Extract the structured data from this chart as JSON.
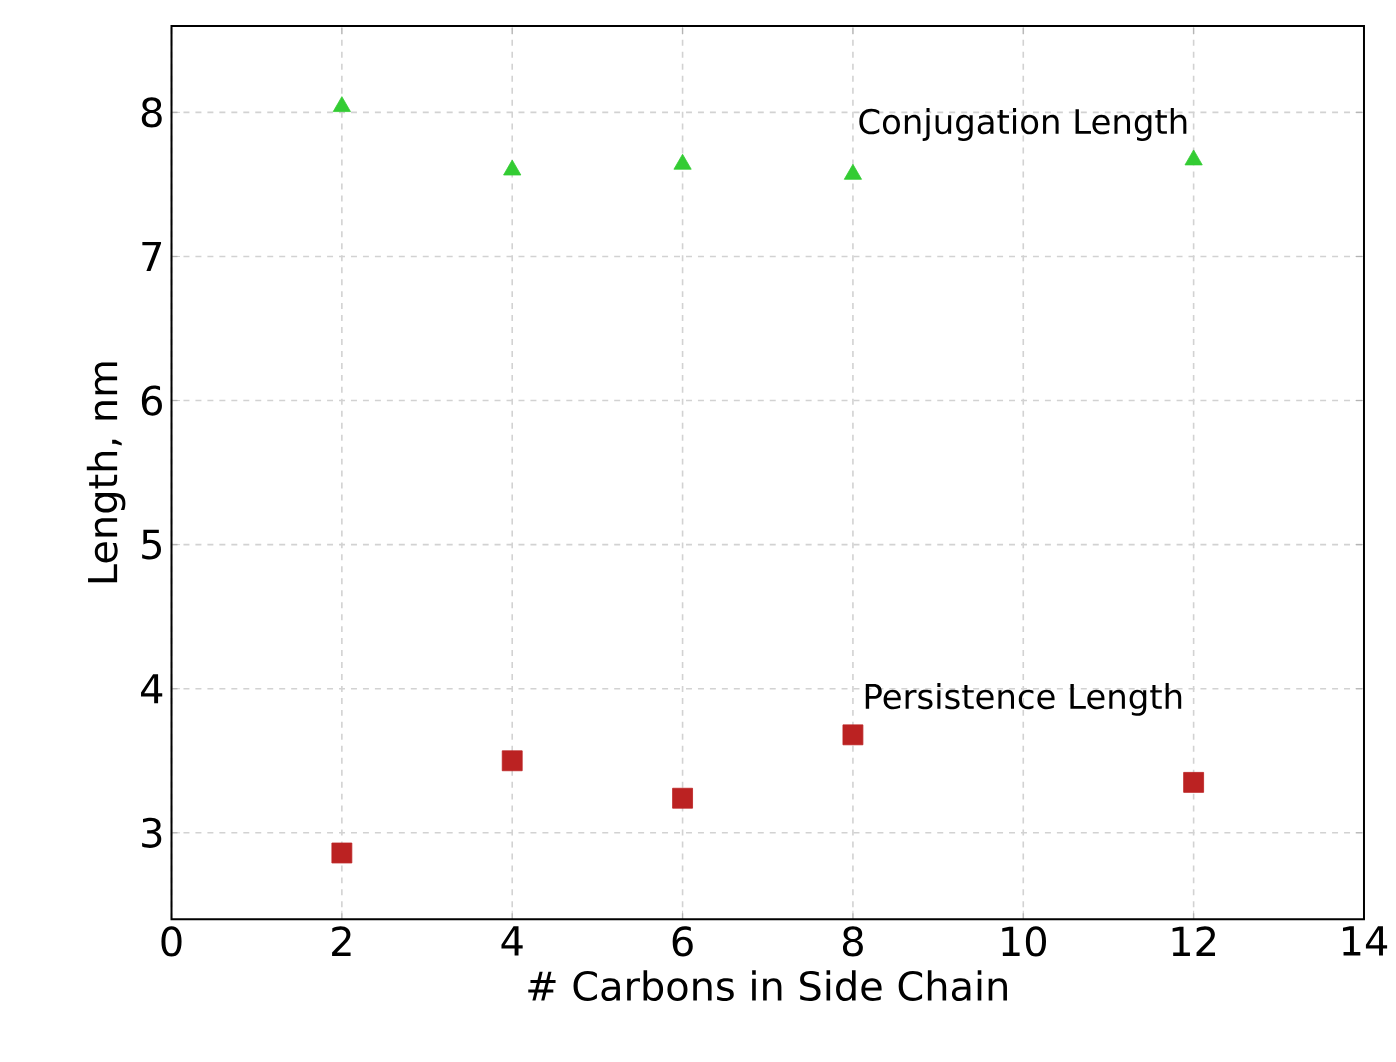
{
  "chart_data": {
    "type": "scatter",
    "xlabel": "# Carbons in Side Chain",
    "ylabel": "Length, nm",
    "x": [
      2,
      4,
      6,
      8,
      12
    ],
    "series": [
      {
        "name": "Conjugation Length",
        "color": "#33cc33",
        "marker": "triangle",
        "values": [
          8.04,
          7.6,
          7.64,
          7.57,
          7.67
        ]
      },
      {
        "name": "Persistence Length",
        "color": "#bb2222",
        "marker": "square",
        "values": [
          2.86,
          3.5,
          3.24,
          3.68,
          3.35
        ]
      }
    ],
    "xlim": [
      0,
      14
    ],
    "ylim": [
      2.4,
      8.6
    ],
    "xticks": [
      0,
      2,
      4,
      6,
      8,
      10,
      12,
      14
    ],
    "yticks": [
      3,
      4,
      5,
      6,
      7,
      8
    ],
    "grid": true
  }
}
